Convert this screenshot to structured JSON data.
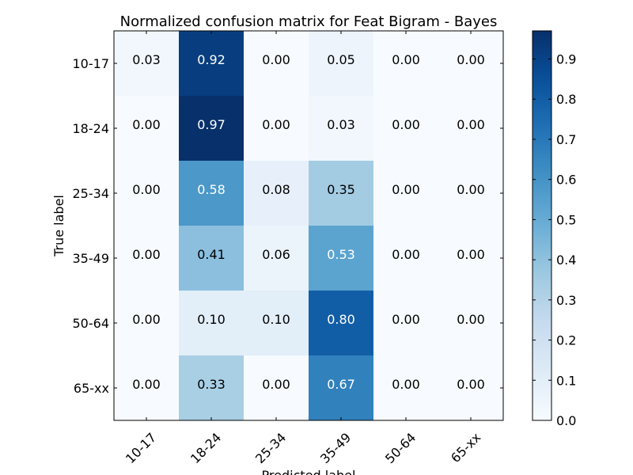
{
  "chart_data": {
    "type": "heatmap",
    "title": "Normalized confusion matrix for Feat Bigram - Bayes",
    "xlabel": "Predicted label",
    "ylabel": "True label",
    "x_categories": [
      "10-17",
      "18-24",
      "25-34",
      "35-49",
      "50-64",
      "65-xx"
    ],
    "y_categories": [
      "10-17",
      "18-24",
      "25-34",
      "35-49",
      "50-64",
      "65-xx"
    ],
    "values": [
      [
        0.03,
        0.92,
        0.0,
        0.05,
        0.0,
        0.0
      ],
      [
        0.0,
        0.97,
        0.0,
        0.03,
        0.0,
        0.0
      ],
      [
        0.0,
        0.58,
        0.08,
        0.35,
        0.0,
        0.0
      ],
      [
        0.0,
        0.41,
        0.06,
        0.53,
        0.0,
        0.0
      ],
      [
        0.0,
        0.1,
        0.1,
        0.8,
        0.0,
        0.0
      ],
      [
        0.0,
        0.33,
        0.0,
        0.67,
        0.0,
        0.0
      ]
    ],
    "value_labels": [
      [
        "0.03",
        "0.92",
        "0.00",
        "0.05",
        "0.00",
        "0.00"
      ],
      [
        "0.00",
        "0.97",
        "0.00",
        "0.03",
        "0.00",
        "0.00"
      ],
      [
        "0.00",
        "0.58",
        "0.08",
        "0.35",
        "0.00",
        "0.00"
      ],
      [
        "0.00",
        "0.41",
        "0.06",
        "0.53",
        "0.00",
        "0.00"
      ],
      [
        "0.00",
        "0.10",
        "0.10",
        "0.80",
        "0.00",
        "0.00"
      ],
      [
        "0.00",
        "0.33",
        "0.00",
        "0.67",
        "0.00",
        "0.00"
      ]
    ],
    "colormap": "Blues",
    "colorbar": {
      "range": [
        0.0,
        0.97
      ],
      "ticks": [
        0.0,
        0.1,
        0.2,
        0.3,
        0.4,
        0.5,
        0.6,
        0.7,
        0.8,
        0.9
      ],
      "tick_labels": [
        "0.0",
        "0.1",
        "0.2",
        "0.3",
        "0.4",
        "0.5",
        "0.6",
        "0.7",
        "0.8",
        "0.9"
      ]
    },
    "grid": false
  }
}
